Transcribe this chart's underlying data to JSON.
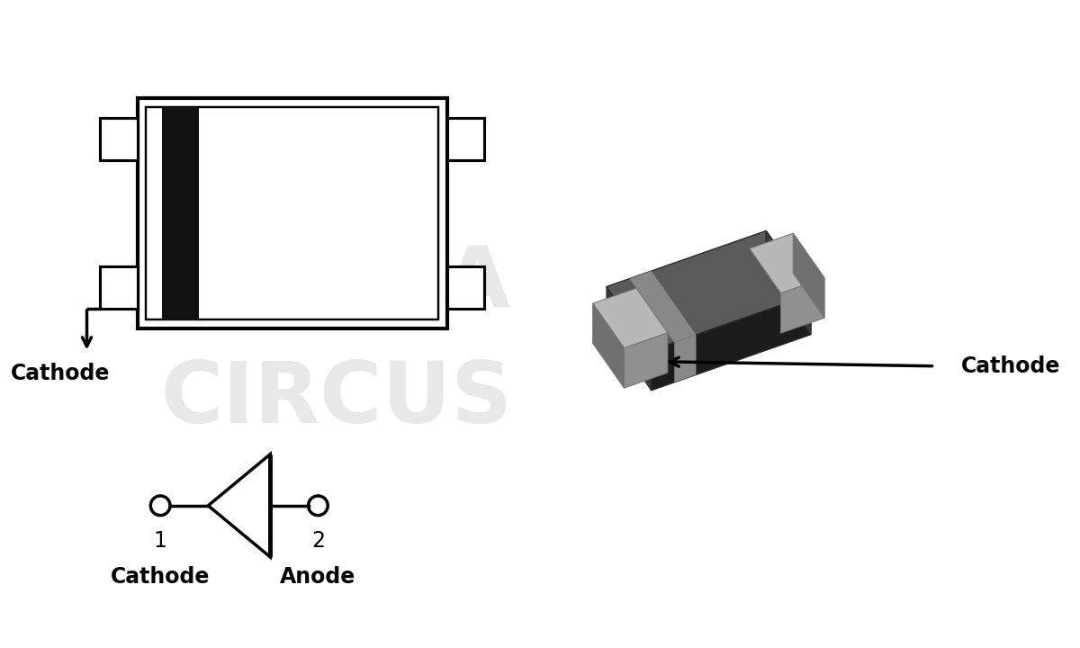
{
  "bg_color": "#ffffff",
  "line_color": "#000000",
  "dark_color": "#111111",
  "watermark_color": "#e8e8e8",
  "cathode_label_top": "Cathode",
  "cathode_label_bottom": "Cathode",
  "anode_label": "Anode",
  "cathode_3d_label": "Cathode",
  "label1": "1",
  "label2": "2",
  "font_size_large": 17,
  "lw": 2.5,
  "chip_body_dark": "#1c1c1c",
  "chip_top_gray": "#5a5a5a",
  "chip_side_gray": "#3a3a3a",
  "chip_lead_light": "#b8b8b8",
  "chip_lead_mid": "#909090",
  "chip_lead_dark": "#707070",
  "chip_stripe_gray": "#888888"
}
